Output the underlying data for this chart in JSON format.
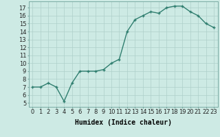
{
  "x": [
    0,
    1,
    2,
    3,
    4,
    5,
    6,
    7,
    8,
    9,
    10,
    11,
    12,
    13,
    14,
    15,
    16,
    17,
    18,
    19,
    20,
    21,
    22,
    23
  ],
  "y": [
    7.0,
    7.0,
    7.5,
    7.0,
    5.2,
    7.5,
    9.0,
    9.0,
    9.0,
    9.2,
    10.0,
    10.5,
    14.0,
    15.5,
    16.0,
    16.5,
    16.3,
    17.0,
    17.2,
    17.2,
    16.5,
    16.0,
    15.0,
    14.5
  ],
  "line_color": "#2e7d6e",
  "marker": "+",
  "marker_size": 3,
  "marker_linewidth": 1.0,
  "line_width": 1.0,
  "bg_color": "#cdeae4",
  "grid_color": "#aecfca",
  "xlabel": "Humidex (Indice chaleur)",
  "xlabel_fontsize": 7,
  "ylabel_ticks": [
    5,
    6,
    7,
    8,
    9,
    10,
    11,
    12,
    13,
    14,
    15,
    16,
    17
  ],
  "xlim": [
    -0.5,
    23.5
  ],
  "ylim": [
    4.5,
    17.8
  ],
  "tick_fontsize": 6,
  "xtick_labels": [
    "0",
    "1",
    "2",
    "3",
    "4",
    "5",
    "6",
    "7",
    "8",
    "9",
    "10",
    "11",
    "12",
    "13",
    "14",
    "15",
    "16",
    "17",
    "18",
    "19",
    "20",
    "21",
    "22",
    "23"
  ]
}
